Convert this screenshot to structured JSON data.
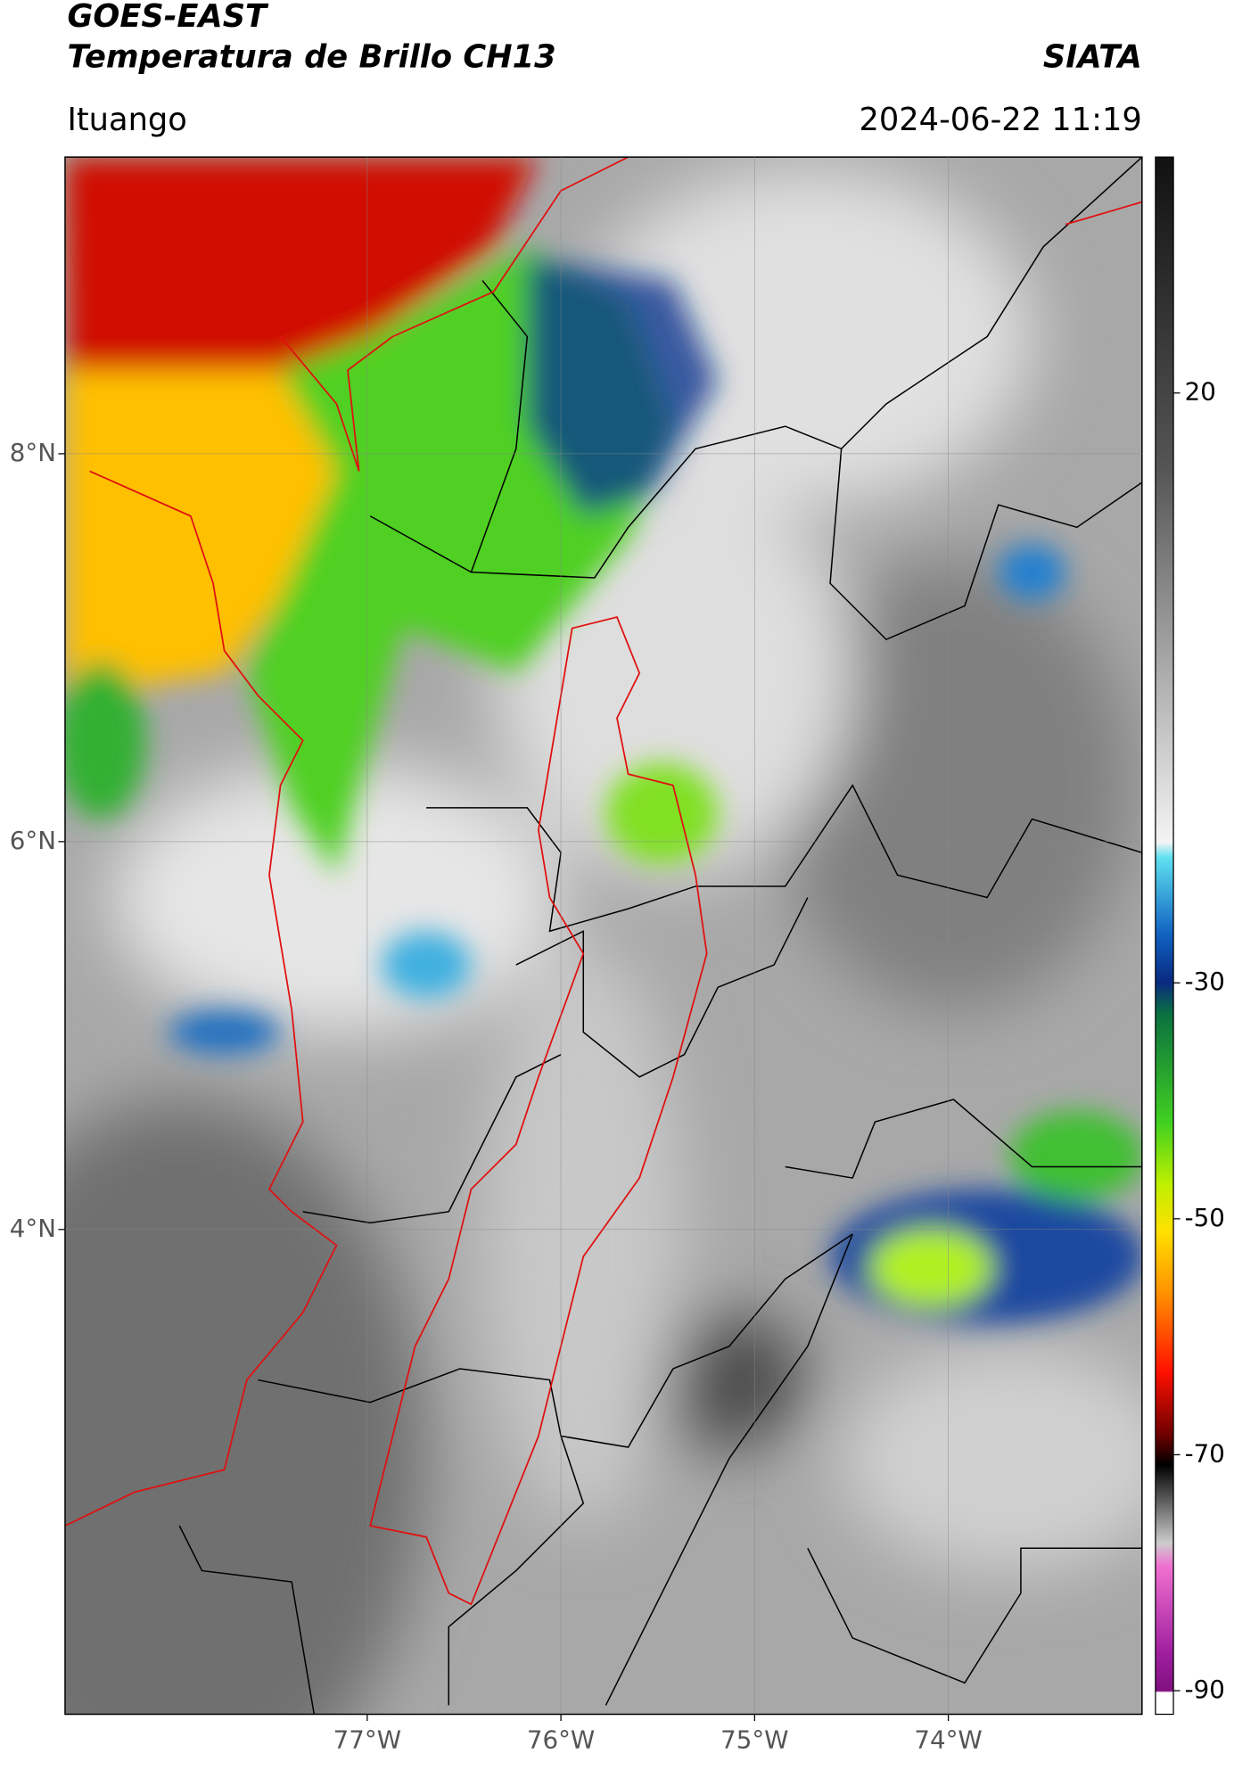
{
  "header": {
    "title_line1": "GOES-EAST",
    "title_line2": "Temperatura de Brillo CH13",
    "org": "SIATA",
    "location": "Ituango",
    "datetime": "2024-06-22 11:19"
  },
  "map": {
    "lon_range": [
      -78.56,
      -73.0
    ],
    "lat_range": [
      1.5,
      9.53
    ],
    "grid": true,
    "lat_ticks": [
      {
        "value": 8,
        "label": "8°N"
      },
      {
        "value": 6,
        "label": "6°N"
      },
      {
        "value": 4,
        "label": "4°N"
      }
    ],
    "lon_ticks": [
      {
        "value": -77,
        "label": "77°W"
      },
      {
        "value": -76,
        "label": "76°W"
      },
      {
        "value": -75,
        "label": "75°W"
      },
      {
        "value": -74,
        "label": "74°W"
      }
    ]
  },
  "colorbar": {
    "range": [
      -92,
      40
    ],
    "ticks": [
      20,
      -30,
      -50,
      -70,
      -90
    ]
  }
}
